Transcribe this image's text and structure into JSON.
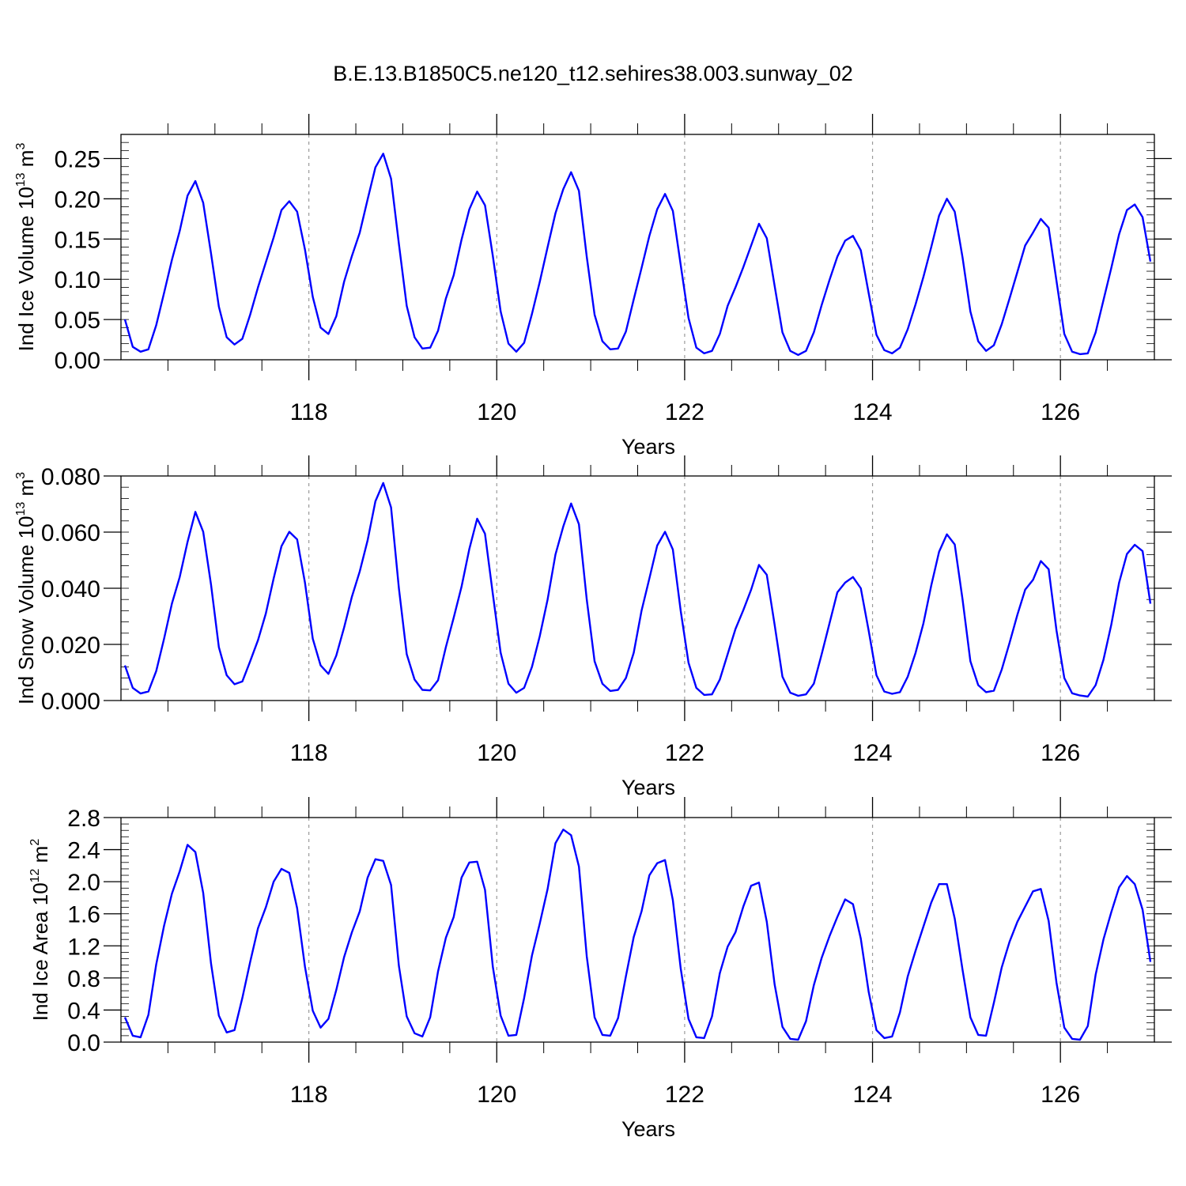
{
  "title": "B.E.13.B1850C5.ne120_t12.sehires38.003.sunway_02",
  "colors": {
    "line": "#0000ff",
    "axis": "#000000",
    "refline": "#9a9a9a"
  },
  "chart_data": [
    {
      "type": "line",
      "ylabel_main": "Ind Ice Volume 10",
      "ylabel_exp": "13",
      "ylabel_unit": "m",
      "ylabel_unit_exp": "3",
      "xlabel": "Years",
      "xlim": [
        116.0,
        127.0
      ],
      "ylim": [
        0.0,
        0.28
      ],
      "xticks": [
        118,
        120,
        122,
        124,
        126
      ],
      "yticks": [
        "0.00",
        "0.05",
        "0.10",
        "0.15",
        "0.20",
        "0.25"
      ],
      "ytick_values": [
        0.0,
        0.05,
        0.1,
        0.15,
        0.2,
        0.25
      ],
      "grid_vertical_dashed": [
        118,
        120,
        122,
        124,
        126
      ],
      "series": [
        {
          "x_start": 116.0417,
          "x_step": 0.08333,
          "values": [
            0.05,
            0.016,
            0.01,
            0.013,
            0.043,
            0.083,
            0.124,
            0.16,
            0.204,
            0.222,
            0.195,
            0.132,
            0.066,
            0.028,
            0.019,
            0.026,
            0.056,
            0.09,
            0.121,
            0.152,
            0.186,
            0.197,
            0.184,
            0.137,
            0.078,
            0.04,
            0.032,
            0.054,
            0.097,
            0.129,
            0.158,
            0.199,
            0.239,
            0.256,
            0.225,
            0.144,
            0.067,
            0.028,
            0.014,
            0.015,
            0.036,
            0.076,
            0.105,
            0.149,
            0.187,
            0.209,
            0.192,
            0.129,
            0.06,
            0.02,
            0.01,
            0.021,
            0.057,
            0.097,
            0.14,
            0.182,
            0.212,
            0.233,
            0.21,
            0.128,
            0.056,
            0.023,
            0.013,
            0.014,
            0.035,
            0.075,
            0.114,
            0.154,
            0.187,
            0.206,
            0.185,
            0.118,
            0.052,
            0.015,
            0.008,
            0.011,
            0.032,
            0.067,
            0.09,
            0.115,
            0.142,
            0.169,
            0.151,
            0.092,
            0.034,
            0.011,
            0.006,
            0.011,
            0.034,
            0.068,
            0.099,
            0.128,
            0.148,
            0.154,
            0.136,
            0.083,
            0.031,
            0.012,
            0.008,
            0.015,
            0.038,
            0.069,
            0.103,
            0.14,
            0.179,
            0.2,
            0.184,
            0.127,
            0.06,
            0.023,
            0.011,
            0.018,
            0.044,
            0.076,
            0.109,
            0.142,
            0.158,
            0.175,
            0.164,
            0.098,
            0.032,
            0.01,
            0.007,
            0.008,
            0.034,
            0.074,
            0.114,
            0.156,
            0.186,
            0.193,
            0.177,
            0.122
          ]
        }
      ]
    },
    {
      "type": "line",
      "ylabel_main": "Ind Snow Volume 10",
      "ylabel_exp": "13",
      "ylabel_unit": "m",
      "ylabel_unit_exp": "3",
      "xlabel": "Years",
      "xlim": [
        116.0,
        127.0
      ],
      "ylim": [
        0.0,
        0.08
      ],
      "xticks": [
        118,
        120,
        122,
        124,
        126
      ],
      "yticks": [
        "0.000",
        "0.020",
        "0.040",
        "0.060",
        "0.080"
      ],
      "ytick_values": [
        0.0,
        0.02,
        0.04,
        0.06,
        0.08
      ],
      "grid_vertical_dashed": [
        118,
        120,
        122,
        124,
        126
      ],
      "series": [
        {
          "x_start": 116.0417,
          "x_step": 0.08333,
          "values": [
            0.0125,
            0.0045,
            0.0025,
            0.0032,
            0.0105,
            0.022,
            0.0345,
            0.044,
            0.0565,
            0.0672,
            0.0601,
            0.0413,
            0.019,
            0.009,
            0.0058,
            0.0068,
            0.014,
            0.0215,
            0.031,
            0.0435,
            0.055,
            0.0601,
            0.0574,
            0.042,
            0.022,
            0.0125,
            0.0095,
            0.016,
            0.026,
            0.037,
            0.046,
            0.057,
            0.071,
            0.0775,
            0.0688,
            0.04,
            0.0165,
            0.0075,
            0.0038,
            0.0036,
            0.0072,
            0.019,
            0.0295,
            0.0405,
            0.054,
            0.0648,
            0.0594,
            0.038,
            0.017,
            0.006,
            0.0028,
            0.0045,
            0.012,
            0.023,
            0.036,
            0.052,
            0.062,
            0.0702,
            0.0628,
            0.036,
            0.014,
            0.006,
            0.0034,
            0.0038,
            0.008,
            0.017,
            0.032,
            0.0435,
            0.0552,
            0.0601,
            0.0538,
            0.032,
            0.0135,
            0.0045,
            0.002,
            0.0022,
            0.0075,
            0.0165,
            0.0255,
            0.0322,
            0.0395,
            0.0483,
            0.0448,
            0.027,
            0.0085,
            0.0028,
            0.0017,
            0.0022,
            0.006,
            0.0165,
            0.0275,
            0.0385,
            0.042,
            0.044,
            0.04,
            0.025,
            0.009,
            0.0032,
            0.0024,
            0.003,
            0.0085,
            0.017,
            0.0275,
            0.041,
            0.053,
            0.0592,
            0.0556,
            0.036,
            0.014,
            0.0055,
            0.003,
            0.0035,
            0.011,
            0.0205,
            0.0305,
            0.0395,
            0.043,
            0.0497,
            0.0468,
            0.025,
            0.008,
            0.0026,
            0.0018,
            0.0014,
            0.0055,
            0.0145,
            0.027,
            0.042,
            0.0522,
            0.0555,
            0.0532,
            0.0345
          ]
        }
      ]
    },
    {
      "type": "line",
      "ylabel_main": "Ind Ice Area 10",
      "ylabel_exp": "12",
      "ylabel_unit": "m",
      "ylabel_unit_exp": "2",
      "xlabel": "Years",
      "xlim": [
        116.0,
        127.0
      ],
      "ylim": [
        0.0,
        2.8
      ],
      "xticks": [
        118,
        120,
        122,
        124,
        126
      ],
      "yticks": [
        "0.0",
        "0.4",
        "0.8",
        "1.2",
        "1.6",
        "2.0",
        "2.4",
        "2.8"
      ],
      "ytick_values": [
        0.0,
        0.4,
        0.8,
        1.2,
        1.6,
        2.0,
        2.4,
        2.8
      ],
      "grid_vertical_dashed": [
        118,
        120,
        122,
        124,
        126
      ],
      "series": [
        {
          "x_start": 116.0417,
          "x_step": 0.08333,
          "values": [
            0.31,
            0.08,
            0.06,
            0.34,
            0.97,
            1.45,
            1.85,
            2.13,
            2.46,
            2.37,
            1.86,
            0.98,
            0.33,
            0.12,
            0.15,
            0.55,
            1.0,
            1.42,
            1.68,
            2.0,
            2.16,
            2.11,
            1.67,
            0.94,
            0.39,
            0.18,
            0.29,
            0.65,
            1.06,
            1.37,
            1.63,
            2.05,
            2.28,
            2.26,
            1.96,
            0.95,
            0.32,
            0.11,
            0.07,
            0.31,
            0.88,
            1.3,
            1.56,
            2.05,
            2.24,
            2.25,
            1.9,
            0.94,
            0.33,
            0.08,
            0.09,
            0.55,
            1.08,
            1.48,
            1.91,
            2.48,
            2.65,
            2.58,
            2.19,
            1.07,
            0.31,
            0.09,
            0.08,
            0.3,
            0.82,
            1.31,
            1.63,
            2.08,
            2.23,
            2.27,
            1.77,
            0.92,
            0.29,
            0.06,
            0.05,
            0.32,
            0.86,
            1.19,
            1.37,
            1.69,
            1.95,
            1.99,
            1.5,
            0.72,
            0.19,
            0.04,
            0.03,
            0.26,
            0.71,
            1.05,
            1.32,
            1.56,
            1.78,
            1.72,
            1.29,
            0.63,
            0.15,
            0.05,
            0.07,
            0.37,
            0.82,
            1.14,
            1.44,
            1.74,
            1.97,
            1.97,
            1.54,
            0.9,
            0.31,
            0.09,
            0.08,
            0.49,
            0.93,
            1.25,
            1.5,
            1.69,
            1.88,
            1.91,
            1.51,
            0.74,
            0.18,
            0.04,
            0.03,
            0.2,
            0.84,
            1.28,
            1.62,
            1.93,
            2.07,
            1.97,
            1.65,
            1.0
          ]
        }
      ]
    }
  ]
}
